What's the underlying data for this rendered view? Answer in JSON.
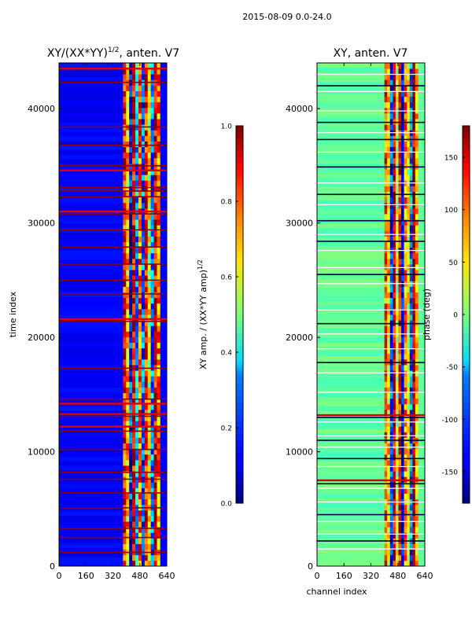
{
  "figure": {
    "suptitle": "2015-08-09 0.0-24.0"
  },
  "chart_data": [
    {
      "type": "heatmap",
      "title": "XY/(XX*YY)^{1/2}, anten. V7",
      "title_main": "XY/(XX*YY)",
      "title_exp": "1/2",
      "title_tail": ", anten. V7",
      "xlabel": "",
      "ylabel": "time index",
      "xlim": [
        0,
        640
      ],
      "ylim": [
        0,
        44000
      ],
      "xticks": [
        0,
        160,
        320,
        480,
        640
      ],
      "yticks": [
        0,
        10000,
        20000,
        30000,
        40000
      ],
      "colormap": "jet",
      "colorbar": {
        "label": "XY amp. / (XX*YY amp)^{1/2}",
        "label_main": "XY amp. / (XX*YY amp)",
        "label_exp": "1/2",
        "clim": [
          0.0,
          1.0
        ],
        "ticks": [
          "0.0",
          "0.2",
          "0.4",
          "0.6",
          "0.8",
          "1.0"
        ]
      },
      "background_value": 0.12,
      "active_channel_range": [
        380,
        600
      ],
      "active_values": [
        0.85,
        0.7,
        0.15,
        0.9,
        0.3,
        0.8,
        0.2,
        0.85,
        0.6,
        0.25,
        0.9,
        0.75
      ],
      "flag_rows": [
        1200,
        2500,
        3300,
        5100,
        6400,
        7600,
        8200,
        10200,
        11800,
        13100,
        14600,
        17300,
        21400,
        23800,
        25000,
        26400,
        27900,
        29400,
        30800,
        32300,
        32800,
        33100,
        35000,
        36800,
        38400,
        42300
      ],
      "bright_band_rows": [
        12200,
        13300,
        14200,
        21600,
        31000,
        34600,
        43500
      ]
    },
    {
      "type": "heatmap",
      "title": "XY, anten. V7",
      "xlabel": "channel index",
      "ylabel": "",
      "xlim": [
        0,
        640
      ],
      "ylim": [
        0,
        44000
      ],
      "xticks": [
        0,
        160,
        320,
        480,
        640
      ],
      "yticks": [
        0,
        10000,
        20000,
        30000,
        40000
      ],
      "colormap": "jet",
      "colorbar": {
        "label": "phase (deg)",
        "clim": [
          -180,
          180
        ],
        "ticks": [
          "-150",
          "-100",
          "-50",
          "0",
          "50",
          "100",
          "150"
        ]
      },
      "background_value": -10,
      "active_channel_range": [
        400,
        600
      ],
      "active_values": [
        110,
        60,
        -120,
        150,
        20,
        130,
        -150,
        90,
        40,
        -90,
        160,
        70
      ],
      "white_rows": [
        1500,
        2800,
        3900,
        5600,
        6800,
        8700,
        10400,
        11400,
        12600,
        15200,
        16900,
        19000,
        20300,
        22400,
        24700,
        26100,
        27600,
        29000,
        31600,
        33500,
        36200,
        37900,
        39800,
        41500,
        43000
      ],
      "dark_rows": [
        2200,
        4500,
        7200,
        9400,
        11000,
        13000,
        17800,
        21200,
        25500,
        28400,
        30200,
        32500,
        34900,
        37300,
        38800,
        42000
      ],
      "red_rows": [
        7500,
        13200
      ]
    }
  ]
}
